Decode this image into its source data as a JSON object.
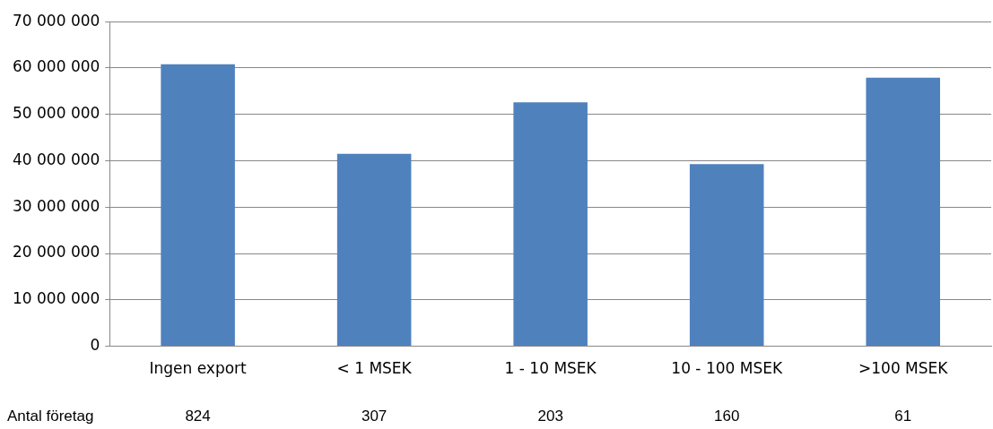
{
  "chart_data": {
    "type": "bar",
    "categories": [
      "Ingen export",
      "< 1 MSEK",
      "1 - 10 MSEK",
      "10 - 100 MSEK",
      ">100 MSEK"
    ],
    "values": [
      60800000,
      41500000,
      52600000,
      39300000,
      57900000
    ],
    "color": "#4f81bd",
    "ylim": [
      0,
      70000000
    ],
    "yticks": [
      {
        "value": 0,
        "label": "0"
      },
      {
        "value": 10000000,
        "label": "10 000 000"
      },
      {
        "value": 20000000,
        "label": "20 000 000"
      },
      {
        "value": 30000000,
        "label": "30 000 000"
      },
      {
        "value": 40000000,
        "label": "40 000 000"
      },
      {
        "value": 50000000,
        "label": "50 000 000"
      },
      {
        "value": 60000000,
        "label": "60 000 000"
      },
      {
        "value": 70000000,
        "label": "70 000 000"
      }
    ],
    "grid": "y",
    "legend": false,
    "annotations": [
      "Antal företag",
      "824",
      "307",
      "203",
      "160",
      "61"
    ]
  }
}
